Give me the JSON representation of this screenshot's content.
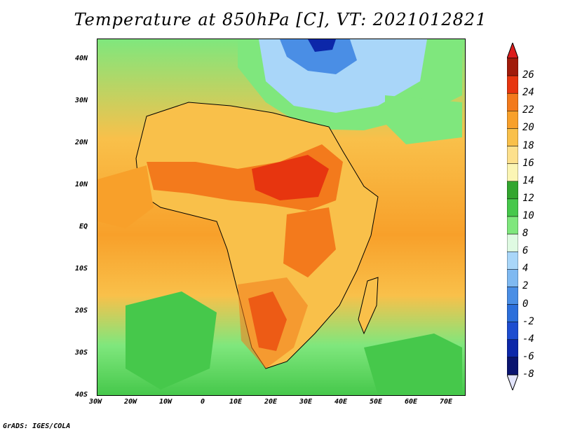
{
  "title": "Temperature at 850hPa [C], VT: 2021012821",
  "credit": "GrADS: IGES/COLA",
  "map": {
    "lat_labels": [
      "40N",
      "30N",
      "20N",
      "10N",
      "EQ",
      "10S",
      "20S",
      "30S",
      "40S"
    ],
    "lon_labels": [
      "30W",
      "20W",
      "10W",
      "0",
      "10E",
      "20E",
      "30E",
      "40E",
      "50E",
      "60E",
      "70E"
    ],
    "lon_range": [
      -30,
      75
    ],
    "lat_range": [
      -40,
      45
    ],
    "fill_layers": [
      {
        "color": "#2ec435",
        "shapes": [
          "ocean-sw-low",
          "ocean-se-low"
        ]
      },
      {
        "color": "#fde89a",
        "shapes": [
          "africa"
        ]
      },
      {
        "color": "#ec5c1c",
        "shapes": [
          "sahel-hot",
          "kalahari-hot"
        ]
      }
    ],
    "contour_color": "#000000"
  },
  "colorbar": {
    "levels": [
      "26",
      "24",
      "22",
      "20",
      "18",
      "16",
      "14",
      "12",
      "10",
      "8",
      "6",
      "4",
      "2",
      "0",
      "-2",
      "-4",
      "-6",
      "-8"
    ],
    "colors": [
      "#a11b0a",
      "#e7350f",
      "#f37a1c",
      "#f8a02a",
      "#f9c04a",
      "#fde08c",
      "#fbf5b4",
      "#33a62f",
      "#46c84b",
      "#7fe77d",
      "#dffae2",
      "#a9d6f9",
      "#7fb9f1",
      "#4a8ee5",
      "#2c6fdb",
      "#1d4dd0",
      "#0c27a9",
      "#0a1470"
    ],
    "top_color": "#dc1c1c",
    "bottom_color": "#e2e4fb"
  }
}
